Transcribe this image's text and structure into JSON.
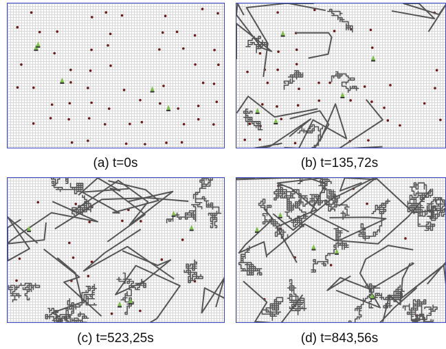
{
  "figure": {
    "panels": [
      {
        "id": "a",
        "caption": "(a) t=0s",
        "coverage": 0.0
      },
      {
        "id": "b",
        "caption": "(b) t=135,72s",
        "coverage": 0.25
      },
      {
        "id": "c",
        "caption": "(c) t=523,25s",
        "coverage": 0.6
      },
      {
        "id": "d",
        "caption": "(d) t=843,56s",
        "coverage": 0.85
      }
    ]
  },
  "colors": {
    "border": "#3a46c8",
    "grid": "#d8d8d8",
    "trail": "#555555",
    "target_dot": "#6b1a1a",
    "robot": "#7fc24a"
  },
  "icons": {
    "target": "dot-marker",
    "robot": "robot-marker"
  }
}
